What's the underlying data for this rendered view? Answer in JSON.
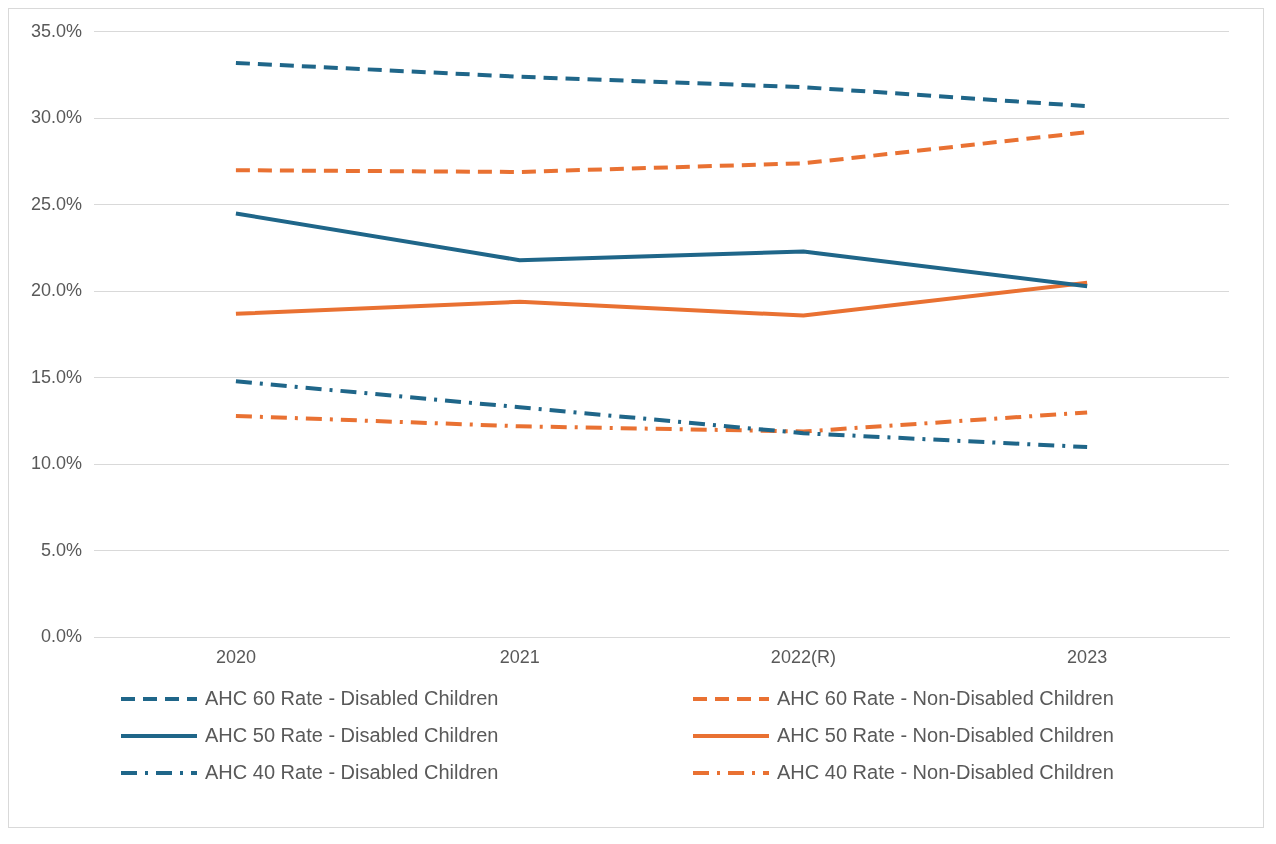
{
  "chart_data": {
    "type": "line",
    "categories": [
      "2020",
      "2021",
      "2022(R)",
      "2023"
    ],
    "ylim": [
      0,
      35
    ],
    "yticks": [
      {
        "value": 0,
        "label": "0.0%"
      },
      {
        "value": 5,
        "label": "5.0%"
      },
      {
        "value": 10,
        "label": "10.0%"
      },
      {
        "value": 15,
        "label": "15.0%"
      },
      {
        "value": 20,
        "label": "20.0%"
      },
      {
        "value": 25,
        "label": "25.0%"
      },
      {
        "value": 30,
        "label": "30.0%"
      },
      {
        "value": 35,
        "label": "35.0%"
      }
    ],
    "grid": "y",
    "legend": "bottom",
    "marker": "none",
    "series": [
      {
        "name": "AHC 60 Rate - Disabled Children",
        "color": "#1f6689",
        "line_style": "dashed",
        "values": [
          33.2,
          32.4,
          31.8,
          30.7
        ]
      },
      {
        "name": "AHC 60 Rate - Non-Disabled Children",
        "color": "#e97132",
        "line_style": "dashed",
        "values": [
          27.0,
          26.9,
          27.4,
          29.2
        ]
      },
      {
        "name": "AHC 50 Rate - Disabled Children",
        "color": "#1f6689",
        "line_style": "solid",
        "values": [
          24.5,
          21.8,
          22.3,
          20.3
        ]
      },
      {
        "name": "AHC 50 Rate - Non-Disabled Children",
        "color": "#e97132",
        "line_style": "solid",
        "values": [
          18.7,
          19.4,
          18.6,
          20.5
        ]
      },
      {
        "name": "AHC 40 Rate - Disabled Children",
        "color": "#1f6689",
        "line_style": "dashdot",
        "values": [
          14.8,
          13.3,
          11.8,
          11.0
        ]
      },
      {
        "name": "AHC 40 Rate - Non-Disabled Children",
        "color": "#e97132",
        "line_style": "dashdot",
        "values": [
          12.8,
          12.2,
          11.9,
          13.0
        ]
      }
    ]
  }
}
